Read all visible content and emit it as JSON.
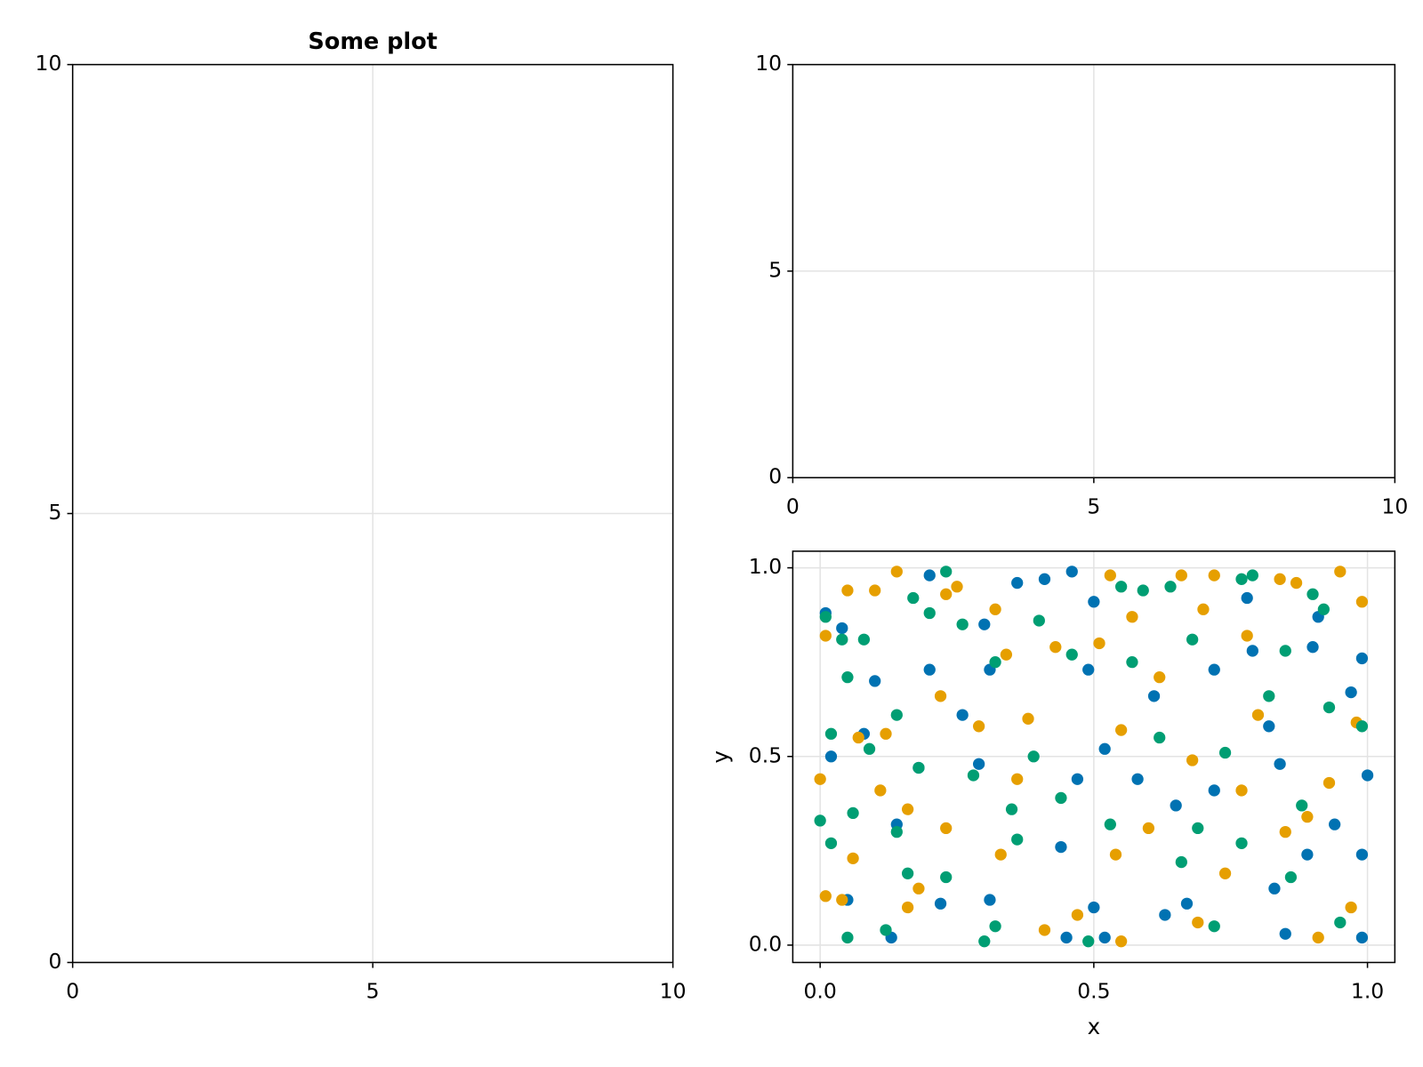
{
  "chart_data": [
    {
      "type": "scatter",
      "title": "Some plot",
      "xlim": [
        0,
        10
      ],
      "ylim": [
        0,
        10
      ],
      "xticks": [
        0,
        5,
        10
      ],
      "yticks": [
        0,
        5,
        10
      ],
      "grid": true
    },
    {
      "type": "scatter",
      "xlim": [
        0,
        10
      ],
      "ylim": [
        0,
        10
      ],
      "xticks": [
        0,
        5,
        10
      ],
      "yticks": [
        0,
        5,
        10
      ],
      "grid": true
    },
    {
      "type": "scatter",
      "x_label": "x",
      "y_label": "y",
      "xlim": [
        -0.05,
        1.05
      ],
      "ylim": [
        -0.046,
        1.044
      ],
      "xticks": [
        {
          "value": 0,
          "label": "0.0"
        },
        0.5,
        {
          "value": 1,
          "label": "1.0"
        }
      ],
      "yticks": [
        {
          "value": 0,
          "label": "0.0"
        },
        0.5,
        {
          "value": 1,
          "label": "1.0"
        }
      ],
      "grid": true,
      "series": [
        {
          "color": "#0072b2",
          "x": [
            0.01,
            0.04,
            0.02,
            0.1,
            0.08,
            0.14,
            0.2,
            0.2,
            0.26,
            0.3,
            0.31,
            0.36,
            0.41,
            0.46,
            0.5,
            0.49,
            0.52,
            0.47,
            0.44,
            0.5,
            0.45,
            0.52,
            0.61,
            0.58,
            0.65,
            0.67,
            0.72,
            0.72,
            0.78,
            0.79,
            0.82,
            0.84,
            0.89,
            0.9,
            0.91,
            0.94,
            0.97,
            0.99,
            1.0,
            0.99,
            0.99,
            0.83,
            0.85,
            0.63,
            0.22,
            0.05,
            0.13,
            0.31,
            0.29,
            0.18
          ],
          "values": [
            0.88,
            0.84,
            0.5,
            0.7,
            0.56,
            0.32,
            0.98,
            0.73,
            0.61,
            0.85,
            0.73,
            0.96,
            0.97,
            0.99,
            0.91,
            0.73,
            0.52,
            0.44,
            0.26,
            0.1,
            0.02,
            0.02,
            0.66,
            0.44,
            0.37,
            0.11,
            0.41,
            0.73,
            0.92,
            0.78,
            0.58,
            0.48,
            0.24,
            0.79,
            0.87,
            0.32,
            0.67,
            0.76,
            0.45,
            0.24,
            0.02,
            0.15,
            0.03,
            0.08,
            0.11,
            0.12,
            0.02,
            0.12,
            0.48,
            0.47
          ]
        },
        {
          "color": "#e69f00",
          "x": [
            0.01,
            0.05,
            0.0,
            0.01,
            0.04,
            0.06,
            0.07,
            0.1,
            0.14,
            0.12,
            0.11,
            0.16,
            0.16,
            0.18,
            0.22,
            0.23,
            0.25,
            0.29,
            0.32,
            0.34,
            0.33,
            0.36,
            0.38,
            0.41,
            0.43,
            0.47,
            0.53,
            0.51,
            0.55,
            0.54,
            0.55,
            0.57,
            0.6,
            0.62,
            0.66,
            0.68,
            0.7,
            0.72,
            0.74,
            0.77,
            0.78,
            0.8,
            0.84,
            0.85,
            0.87,
            0.89,
            0.91,
            0.93,
            0.95,
            0.97,
            0.99,
            0.98,
            0.23,
            0.69
          ],
          "values": [
            0.82,
            0.94,
            0.44,
            0.13,
            0.12,
            0.23,
            0.55,
            0.94,
            0.99,
            0.56,
            0.41,
            0.36,
            0.1,
            0.15,
            0.66,
            0.93,
            0.95,
            0.58,
            0.89,
            0.77,
            0.24,
            0.44,
            0.6,
            0.04,
            0.79,
            0.08,
            0.98,
            0.8,
            0.57,
            0.24,
            0.01,
            0.87,
            0.31,
            0.71,
            0.98,
            0.49,
            0.89,
            0.98,
            0.19,
            0.41,
            0.82,
            0.61,
            0.97,
            0.3,
            0.96,
            0.34,
            0.02,
            0.43,
            0.99,
            0.1,
            0.91,
            0.59,
            0.31,
            0.06
          ]
        },
        {
          "color": "#009e73",
          "x": [
            0.0,
            0.02,
            0.01,
            0.02,
            0.04,
            0.05,
            0.05,
            0.06,
            0.08,
            0.09,
            0.12,
            0.14,
            0.14,
            0.16,
            0.17,
            0.18,
            0.2,
            0.23,
            0.23,
            0.26,
            0.28,
            0.3,
            0.32,
            0.32,
            0.35,
            0.36,
            0.39,
            0.4,
            0.44,
            0.46,
            0.49,
            0.53,
            0.55,
            0.57,
            0.59,
            0.62,
            0.64,
            0.66,
            0.68,
            0.69,
            0.72,
            0.74,
            0.77,
            0.79,
            0.77,
            0.82,
            0.85,
            0.88,
            0.9,
            0.92,
            0.93,
            0.95,
            0.99,
            0.86
          ],
          "values": [
            0.33,
            0.56,
            0.87,
            0.27,
            0.81,
            0.02,
            0.71,
            0.35,
            0.81,
            0.52,
            0.04,
            0.61,
            0.3,
            0.19,
            0.92,
            0.47,
            0.88,
            0.99,
            0.18,
            0.85,
            0.45,
            0.01,
            0.75,
            0.05,
            0.36,
            0.28,
            0.5,
            0.86,
            0.39,
            0.77,
            0.01,
            0.32,
            0.95,
            0.75,
            0.94,
            0.55,
            0.95,
            0.22,
            0.81,
            0.31,
            0.05,
            0.51,
            0.97,
            0.98,
            0.27,
            0.66,
            0.78,
            0.37,
            0.93,
            0.89,
            0.63,
            0.06,
            0.58,
            0.18
          ]
        }
      ]
    }
  ]
}
